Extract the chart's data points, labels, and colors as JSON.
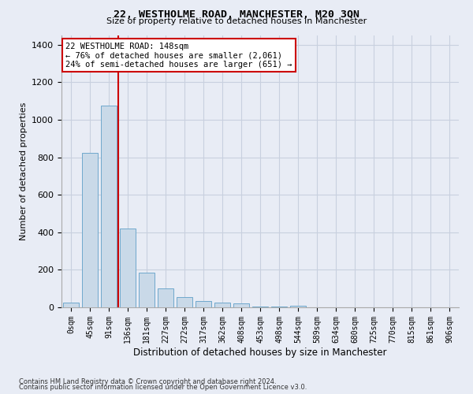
{
  "title1": "22, WESTHOLME ROAD, MANCHESTER, M20 3QN",
  "title2": "Size of property relative to detached houses in Manchester",
  "xlabel": "Distribution of detached houses by size in Manchester",
  "ylabel": "Number of detached properties",
  "bar_labels": [
    "0sqm",
    "45sqm",
    "91sqm",
    "136sqm",
    "181sqm",
    "227sqm",
    "272sqm",
    "317sqm",
    "362sqm",
    "408sqm",
    "453sqm",
    "498sqm",
    "544sqm",
    "589sqm",
    "634sqm",
    "680sqm",
    "725sqm",
    "770sqm",
    "815sqm",
    "861sqm",
    "906sqm"
  ],
  "bar_values": [
    25,
    825,
    1075,
    420,
    185,
    100,
    55,
    35,
    25,
    20,
    5,
    5,
    10,
    0,
    0,
    0,
    0,
    0,
    0,
    0,
    0
  ],
  "bar_color": "#c9d9e8",
  "bar_edgecolor": "#6fa8cc",
  "annotation_line1": "22 WESTHOLME ROAD: 148sqm",
  "annotation_line2": "← 76% of detached houses are smaller (2,061)",
  "annotation_line3": "24% of semi-detached houses are larger (651) →",
  "annotation_box_color": "#ffffff",
  "annotation_box_edge": "#cc0000",
  "vline_color": "#cc0000",
  "ylim": [
    0,
    1450
  ],
  "yticks": [
    0,
    200,
    400,
    600,
    800,
    1000,
    1200,
    1400
  ],
  "grid_color": "#c8d0df",
  "background_color": "#e8ecf5",
  "footer1": "Contains HM Land Registry data © Crown copyright and database right 2024.",
  "footer2": "Contains public sector information licensed under the Open Government Licence v3.0."
}
